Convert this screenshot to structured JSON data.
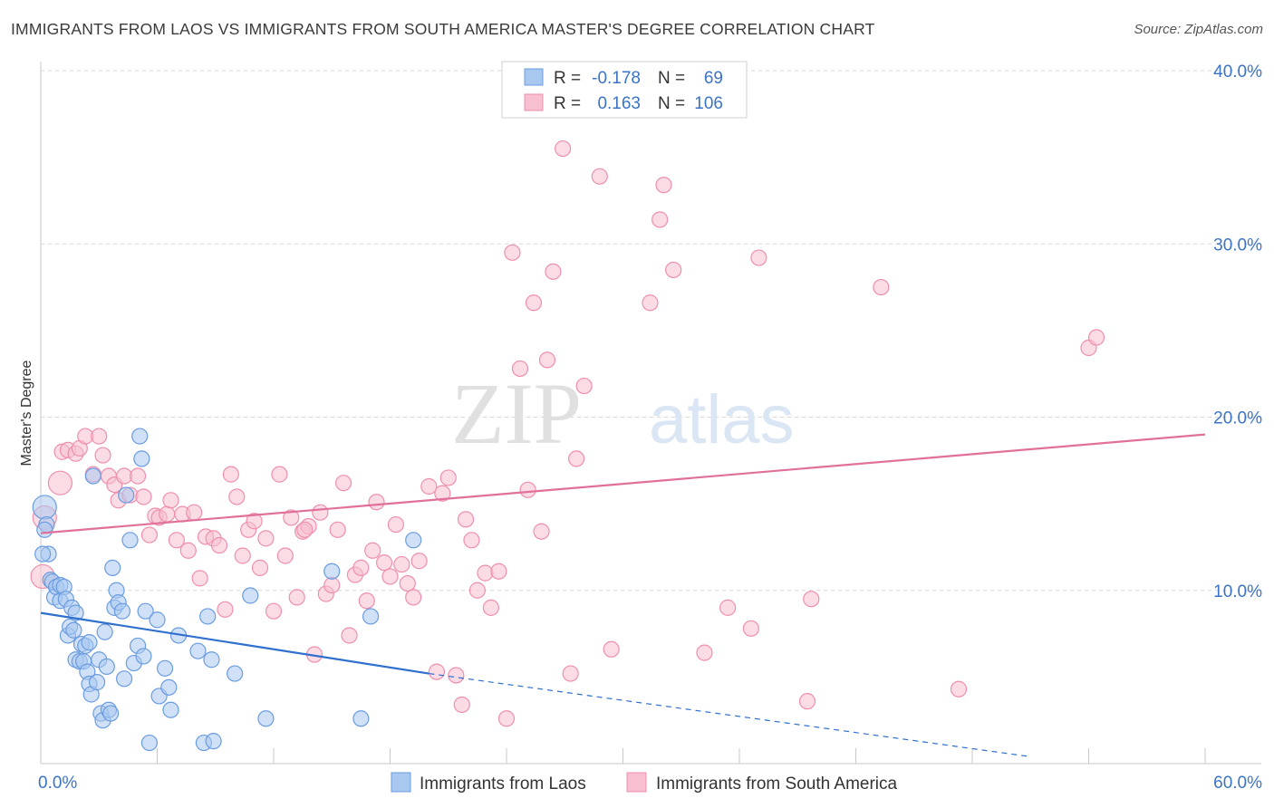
{
  "title": "IMMIGRANTS FROM LAOS VS IMMIGRANTS FROM SOUTH AMERICA MASTER'S DEGREE CORRELATION CHART",
  "source": "Source: ZipAtlas.com",
  "watermark": {
    "zip": "ZIP",
    "atlas": "atlas"
  },
  "colors": {
    "blue_fill": "#a9c8f0",
    "blue_stroke": "#6a9ce0",
    "blue_line": "#2f6fce",
    "pink_fill": "#f7bfd0",
    "pink_stroke": "#ee8fad",
    "pink_line": "#e0709a",
    "axis_label": "#3b73c7",
    "grid": "#d8d8d8"
  },
  "legend": {
    "rows": [
      {
        "r_label": "R =",
        "r_value": "-0.178",
        "n_label": "N =",
        "n_value": "69"
      },
      {
        "r_label": "R =",
        "r_value": "0.163",
        "n_label": "N =",
        "n_value": "106"
      }
    ]
  },
  "chart_data": {
    "type": "scatter",
    "xlabel": "",
    "ylabel": "Master's Degree",
    "xlim": [
      0,
      60
    ],
    "ylim": [
      0,
      40
    ],
    "x_tick_labels": [
      "0.0%",
      "60.0%"
    ],
    "y_ticks": [
      10,
      20,
      30,
      40
    ],
    "y_tick_labels": [
      "10.0%",
      "20.0%",
      "30.0%",
      "40.0%"
    ],
    "grid": "horizontal dashed",
    "legend_placement": "bottom-center",
    "series": [
      {
        "name": "Immigrants from Laos",
        "color": "#a9c8f0",
        "trend": {
          "x": [
            0,
            20
          ],
          "y": [
            8.7,
            5.2
          ],
          "dashed_to": [
            51,
            0.4
          ]
        },
        "points": [
          [
            0.2,
            14.8
          ],
          [
            0.3,
            13.8
          ],
          [
            0.4,
            12.1
          ],
          [
            0.5,
            10.6
          ],
          [
            0.6,
            10.5
          ],
          [
            0.7,
            9.6
          ],
          [
            0.8,
            10.2
          ],
          [
            1.0,
            9.4
          ],
          [
            1.0,
            10.3
          ],
          [
            1.2,
            10.2
          ],
          [
            1.3,
            9.5
          ],
          [
            1.4,
            7.4
          ],
          [
            1.5,
            7.9
          ],
          [
            1.6,
            9.0
          ],
          [
            1.7,
            7.7
          ],
          [
            1.8,
            8.7
          ],
          [
            1.8,
            6.0
          ],
          [
            2.0,
            5.9
          ],
          [
            2.1,
            6.9
          ],
          [
            2.2,
            5.9
          ],
          [
            2.3,
            6.8
          ],
          [
            2.4,
            5.3
          ],
          [
            2.5,
            7.0
          ],
          [
            2.5,
            4.6
          ],
          [
            2.6,
            4.0
          ],
          [
            2.7,
            16.6
          ],
          [
            2.9,
            4.7
          ],
          [
            3.0,
            6.0
          ],
          [
            3.1,
            2.9
          ],
          [
            3.2,
            2.5
          ],
          [
            3.3,
            7.6
          ],
          [
            3.4,
            5.6
          ],
          [
            3.5,
            3.1
          ],
          [
            3.6,
            2.9
          ],
          [
            3.7,
            11.3
          ],
          [
            3.8,
            9.0
          ],
          [
            3.9,
            10.0
          ],
          [
            4.0,
            9.3
          ],
          [
            4.2,
            8.8
          ],
          [
            4.3,
            4.9
          ],
          [
            4.4,
            15.5
          ],
          [
            4.6,
            12.9
          ],
          [
            4.8,
            5.8
          ],
          [
            5.0,
            6.8
          ],
          [
            5.1,
            18.9
          ],
          [
            5.2,
            17.6
          ],
          [
            5.3,
            6.2
          ],
          [
            5.4,
            8.8
          ],
          [
            5.6,
            1.2
          ],
          [
            6.0,
            8.3
          ],
          [
            6.1,
            3.9
          ],
          [
            6.4,
            5.5
          ],
          [
            6.6,
            4.4
          ],
          [
            6.7,
            3.1
          ],
          [
            7.1,
            7.4
          ],
          [
            8.1,
            6.5
          ],
          [
            8.4,
            1.2
          ],
          [
            8.6,
            8.5
          ],
          [
            8.8,
            6.0
          ],
          [
            8.9,
            1.3
          ],
          [
            10.0,
            5.2
          ],
          [
            10.8,
            9.7
          ],
          [
            11.6,
            2.6
          ],
          [
            15.0,
            11.1
          ],
          [
            16.5,
            2.6
          ],
          [
            17.0,
            8.5
          ],
          [
            19.2,
            12.9
          ],
          [
            0.1,
            12.1
          ],
          [
            0.2,
            13.5
          ]
        ]
      },
      {
        "name": "Immigrants from South America",
        "color": "#f7bfd0",
        "trend": {
          "x": [
            0,
            60
          ],
          "y": [
            13.3,
            19.0
          ]
        },
        "points": [
          [
            0.1,
            10.8
          ],
          [
            0.2,
            14.2
          ],
          [
            1.0,
            16.2
          ],
          [
            1.1,
            18.0
          ],
          [
            1.4,
            18.1
          ],
          [
            1.8,
            17.9
          ],
          [
            2.0,
            18.2
          ],
          [
            2.3,
            18.9
          ],
          [
            2.7,
            16.7
          ],
          [
            3.0,
            18.9
          ],
          [
            3.2,
            17.8
          ],
          [
            3.5,
            16.6
          ],
          [
            3.8,
            16.1
          ],
          [
            4.0,
            15.2
          ],
          [
            4.3,
            16.6
          ],
          [
            4.6,
            15.5
          ],
          [
            5.0,
            16.6
          ],
          [
            5.3,
            15.4
          ],
          [
            5.6,
            13.2
          ],
          [
            5.9,
            14.3
          ],
          [
            6.1,
            14.2
          ],
          [
            6.5,
            14.4
          ],
          [
            6.7,
            15.2
          ],
          [
            7.0,
            12.9
          ],
          [
            7.3,
            14.4
          ],
          [
            7.6,
            12.3
          ],
          [
            7.9,
            14.5
          ],
          [
            8.2,
            10.7
          ],
          [
            8.5,
            13.1
          ],
          [
            8.9,
            13.0
          ],
          [
            9.2,
            12.6
          ],
          [
            9.5,
            8.9
          ],
          [
            9.8,
            16.7
          ],
          [
            10.1,
            15.4
          ],
          [
            10.4,
            12.0
          ],
          [
            10.7,
            13.5
          ],
          [
            11.0,
            14.0
          ],
          [
            11.3,
            11.3
          ],
          [
            11.6,
            13.0
          ],
          [
            12.0,
            8.8
          ],
          [
            12.3,
            16.7
          ],
          [
            12.6,
            12.0
          ],
          [
            12.9,
            14.2
          ],
          [
            13.2,
            9.6
          ],
          [
            13.5,
            13.4
          ],
          [
            13.8,
            13.7
          ],
          [
            14.1,
            6.3
          ],
          [
            14.4,
            14.5
          ],
          [
            14.7,
            9.8
          ],
          [
            15.0,
            10.3
          ],
          [
            15.3,
            13.5
          ],
          [
            15.6,
            16.2
          ],
          [
            15.9,
            7.4
          ],
          [
            16.2,
            10.9
          ],
          [
            16.5,
            11.3
          ],
          [
            16.8,
            9.4
          ],
          [
            17.1,
            12.3
          ],
          [
            17.3,
            15.1
          ],
          [
            17.7,
            11.6
          ],
          [
            18.0,
            10.8
          ],
          [
            18.3,
            13.8
          ],
          [
            18.6,
            11.5
          ],
          [
            18.9,
            10.4
          ],
          [
            19.2,
            9.6
          ],
          [
            19.5,
            11.7
          ],
          [
            20.0,
            16.0
          ],
          [
            20.4,
            5.3
          ],
          [
            20.7,
            15.6
          ],
          [
            21.0,
            16.5
          ],
          [
            21.4,
            5.1
          ],
          [
            21.7,
            3.4
          ],
          [
            21.9,
            14.1
          ],
          [
            22.2,
            12.9
          ],
          [
            22.5,
            10.0
          ],
          [
            22.9,
            11.0
          ],
          [
            23.2,
            9.0
          ],
          [
            23.6,
            11.1
          ],
          [
            24.0,
            2.6
          ],
          [
            24.3,
            29.5
          ],
          [
            24.7,
            22.8
          ],
          [
            25.1,
            15.8
          ],
          [
            25.4,
            26.6
          ],
          [
            25.8,
            13.4
          ],
          [
            26.1,
            23.3
          ],
          [
            26.4,
            28.4
          ],
          [
            26.9,
            35.5
          ],
          [
            27.3,
            5.2
          ],
          [
            27.6,
            17.6
          ],
          [
            28.0,
            21.8
          ],
          [
            28.8,
            33.9
          ],
          [
            29.4,
            6.6
          ],
          [
            31.4,
            26.6
          ],
          [
            31.9,
            31.4
          ],
          [
            32.1,
            33.4
          ],
          [
            32.6,
            28.5
          ],
          [
            34.2,
            6.4
          ],
          [
            35.4,
            9.0
          ],
          [
            36.6,
            7.8
          ],
          [
            37.0,
            29.2
          ],
          [
            39.5,
            3.6
          ],
          [
            39.7,
            9.5
          ],
          [
            43.3,
            27.5
          ],
          [
            47.3,
            4.3
          ],
          [
            54.0,
            24.0
          ],
          [
            54.4,
            24.6
          ],
          [
            13.6,
            13.5
          ]
        ]
      }
    ]
  }
}
